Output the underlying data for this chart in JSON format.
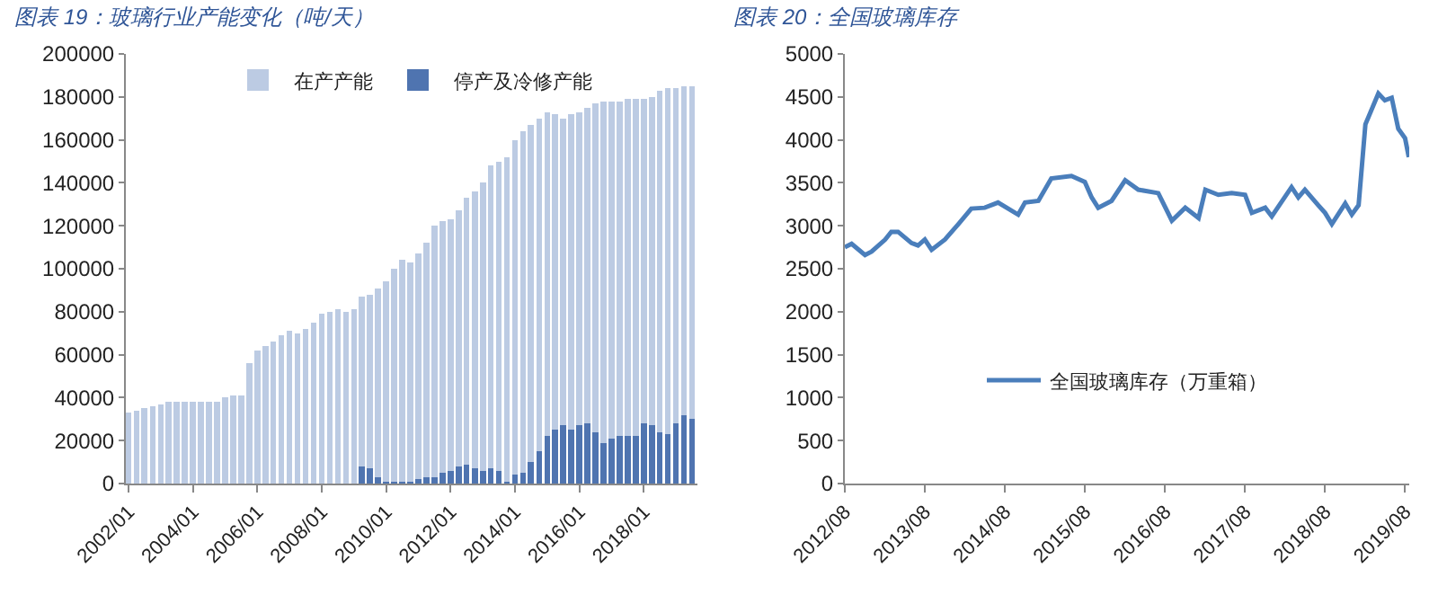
{
  "chart_data": [
    {
      "type": "bar",
      "title": "图表 19：玻璃行业产能变化（吨/天）",
      "legend": "top",
      "x": [
        "2002-01",
        "2002-04",
        "2002-07",
        "2002-10",
        "2003-01",
        "2003-04",
        "2003-07",
        "2003-10",
        "2004-01",
        "2004-04",
        "2004-07",
        "2004-10",
        "2005-01",
        "2005-04",
        "2005-07",
        "2005-10",
        "2006-01",
        "2006-04",
        "2006-07",
        "2006-10",
        "2007-01",
        "2007-04",
        "2007-07",
        "2007-10",
        "2008-01",
        "2008-04",
        "2008-07",
        "2008-10",
        "2009-01",
        "2009-04",
        "2009-07",
        "2009-10",
        "2010-01",
        "2010-04",
        "2010-07",
        "2010-10",
        "2011-01",
        "2011-04",
        "2011-07",
        "2011-10",
        "2012-01",
        "2012-04",
        "2012-07",
        "2012-10",
        "2013-01",
        "2013-04",
        "2013-07",
        "2013-10",
        "2014-01",
        "2014-04",
        "2014-07",
        "2014-10",
        "2015-01",
        "2015-04",
        "2015-07",
        "2015-10",
        "2016-01",
        "2016-04",
        "2016-07",
        "2016-10",
        "2017-01",
        "2017-04",
        "2017-07",
        "2017-10",
        "2018-01",
        "2018-04",
        "2018-07",
        "2018-10",
        "2019-01",
        "2019-04",
        "2019-07"
      ],
      "series": [
        {
          "name": "停产及冷修产能",
          "color": "#4f74b0",
          "values": [
            0,
            0,
            0,
            0,
            0,
            0,
            0,
            0,
            0,
            0,
            0,
            0,
            0,
            0,
            0,
            0,
            0,
            0,
            0,
            0,
            0,
            0,
            0,
            0,
            0,
            0,
            0,
            0,
            0,
            8000,
            7000,
            3000,
            1000,
            1000,
            1000,
            1000,
            2000,
            3000,
            3000,
            5000,
            6000,
            8000,
            9000,
            7000,
            6000,
            7000,
            6000,
            1000,
            4000,
            5000,
            10000,
            15000,
            22000,
            25000,
            27000,
            25000,
            27000,
            28000,
            24000,
            19000,
            21000,
            22000,
            22000,
            22000,
            28000,
            27000,
            24000,
            23000,
            28000,
            32000,
            30000
          ]
        },
        {
          "name": "在产产能",
          "color": "#bccbe3",
          "values": [
            33000,
            34000,
            35000,
            36000,
            37000,
            38000,
            38000,
            38000,
            38000,
            38000,
            38000,
            38000,
            40000,
            41000,
            41000,
            56000,
            62000,
            64000,
            66000,
            69000,
            71000,
            70000,
            72000,
            75000,
            79000,
            80000,
            81000,
            80000,
            81000,
            79000,
            81000,
            88000,
            93000,
            99000,
            103000,
            102000,
            105000,
            109000,
            117000,
            117000,
            117000,
            119000,
            124000,
            129000,
            134000,
            141000,
            144000,
            151000,
            156000,
            159000,
            157000,
            155000,
            151000,
            147000,
            143000,
            147000,
            146000,
            147000,
            153000,
            159000,
            157000,
            156000,
            157000,
            157000,
            151000,
            153000,
            159000,
            161000,
            156000,
            153000,
            155000
          ]
        }
      ],
      "stacked": true,
      "xlim": [
        "2001-12",
        "2019-09"
      ],
      "xticks": [
        {
          "value": "2002-01",
          "label": "2002/01"
        },
        {
          "value": "2004-01",
          "label": "2004/01"
        },
        {
          "value": "2006-01",
          "label": "2006/01"
        },
        {
          "value": "2008-01",
          "label": "2008/01"
        },
        {
          "value": "2010-01",
          "label": "2010/01"
        },
        {
          "value": "2012-01",
          "label": "2012/01"
        },
        {
          "value": "2014-01",
          "label": "2014/01"
        },
        {
          "value": "2016-01",
          "label": "2016/01"
        },
        {
          "value": "2018-01",
          "label": "2018/01"
        }
      ],
      "ylim": [
        0,
        200000
      ],
      "yticks": [
        0,
        20000,
        40000,
        60000,
        80000,
        100000,
        120000,
        140000,
        160000,
        180000,
        200000
      ]
    },
    {
      "type": "line",
      "title": "图表 20：全国玻璃库存",
      "legend": "bottom",
      "x": [
        "2012-08",
        "2012-09",
        "2012-11",
        "2012-12",
        "2013-02",
        "2013-03",
        "2013-04",
        "2013-06",
        "2013-07",
        "2013-08",
        "2013-09",
        "2013-11",
        "2014-01",
        "2014-03",
        "2014-05",
        "2014-07",
        "2014-10",
        "2014-11",
        "2015-01",
        "2015-03",
        "2015-06",
        "2015-08",
        "2015-09",
        "2015-10",
        "2015-12",
        "2016-02",
        "2016-04",
        "2016-07",
        "2016-09",
        "2016-11",
        "2017-01",
        "2017-02",
        "2017-04",
        "2017-06",
        "2017-08",
        "2017-09",
        "2017-11",
        "2017-12",
        "2018-03",
        "2018-04",
        "2018-05",
        "2018-07",
        "2018-08",
        "2018-09",
        "2018-11",
        "2018-12",
        "2019-01",
        "2019-02",
        "2019-04",
        "2019-05",
        "2019-06",
        "2019-07",
        "2019-08",
        "2019-08-18"
      ],
      "series": [
        {
          "name": "全国玻璃库存（万重箱）",
          "color": "#4a7ebb",
          "values": [
            2750,
            2790,
            2660,
            2700,
            2840,
            2930,
            2930,
            2800,
            2770,
            2840,
            2720,
            2840,
            3020,
            3200,
            3210,
            3270,
            3130,
            3270,
            3290,
            3550,
            3580,
            3510,
            3330,
            3210,
            3290,
            3530,
            3420,
            3380,
            3060,
            3210,
            3090,
            3420,
            3360,
            3380,
            3360,
            3150,
            3210,
            3110,
            3450,
            3330,
            3420,
            3240,
            3150,
            3020,
            3260,
            3130,
            3240,
            4180,
            4540,
            4460,
            4490,
            4130,
            4020,
            3800
          ]
        }
      ],
      "xlim": [
        "2012-08",
        "2019-08-20"
      ],
      "xticks": [
        {
          "value": "2012-08",
          "label": "2012/08"
        },
        {
          "value": "2013-08",
          "label": "2013/08"
        },
        {
          "value": "2014-08",
          "label": "2014/08"
        },
        {
          "value": "2015-08",
          "label": "2015/08"
        },
        {
          "value": "2016-08",
          "label": "2016/08"
        },
        {
          "value": "2017-08",
          "label": "2017/08"
        },
        {
          "value": "2018-08",
          "label": "2018/08"
        },
        {
          "value": "2019-08",
          "label": "2019/08"
        }
      ],
      "ylim": [
        0,
        5000
      ],
      "yticks": [
        0,
        500,
        1000,
        1500,
        2000,
        2500,
        3000,
        3500,
        4000,
        4500,
        5000
      ]
    }
  ]
}
